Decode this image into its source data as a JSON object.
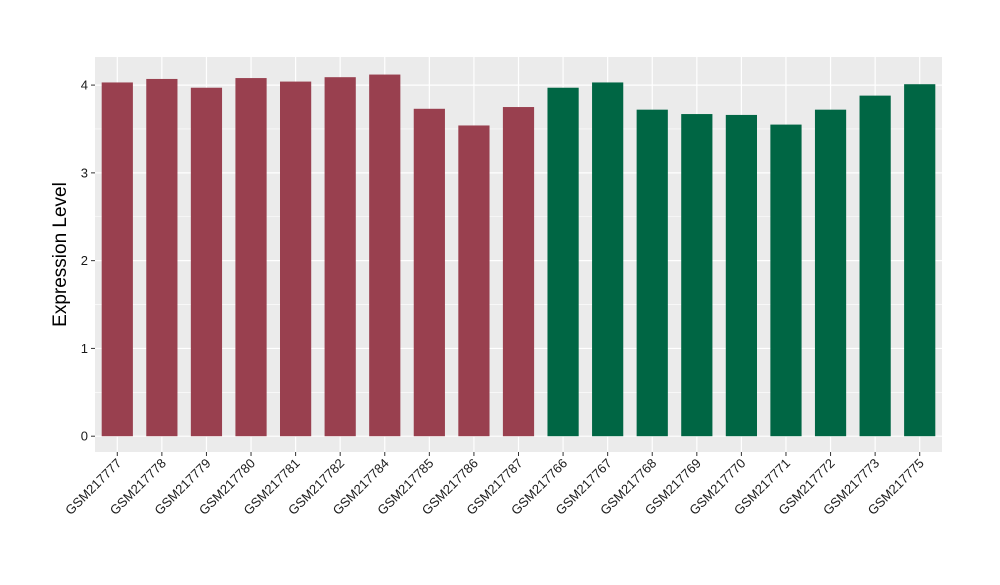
{
  "chart_data": {
    "type": "bar",
    "title": "",
    "xlabel": "",
    "ylabel": "Expression Level",
    "ylim": [
      -0.18,
      4.32
    ],
    "yticks": [
      0,
      1,
      2,
      3,
      4
    ],
    "grid": true,
    "legend": "none",
    "categories": [
      "GSM217777",
      "GSM217778",
      "GSM217779",
      "GSM217780",
      "GSM217781",
      "GSM217782",
      "GSM217784",
      "GSM217785",
      "GSM217786",
      "GSM217787",
      "GSM217766",
      "GSM217767",
      "GSM217768",
      "GSM217769",
      "GSM217770",
      "GSM217771",
      "GSM217772",
      "GSM217773",
      "GSM217775"
    ],
    "values": [
      4.03,
      4.07,
      3.97,
      4.08,
      4.04,
      4.09,
      4.12,
      3.73,
      3.54,
      3.75,
      3.97,
      4.03,
      3.72,
      3.67,
      3.66,
      3.55,
      3.72,
      3.88,
      4.01
    ],
    "bar_colors": [
      "#99404f",
      "#99404f",
      "#99404f",
      "#99404f",
      "#99404f",
      "#99404f",
      "#99404f",
      "#99404f",
      "#99404f",
      "#99404f",
      "#006644",
      "#006644",
      "#006644",
      "#006644",
      "#006644",
      "#006644",
      "#006644",
      "#006644",
      "#006644"
    ],
    "panel_background": "#ebebeb",
    "grid_color": "#ffffff"
  }
}
